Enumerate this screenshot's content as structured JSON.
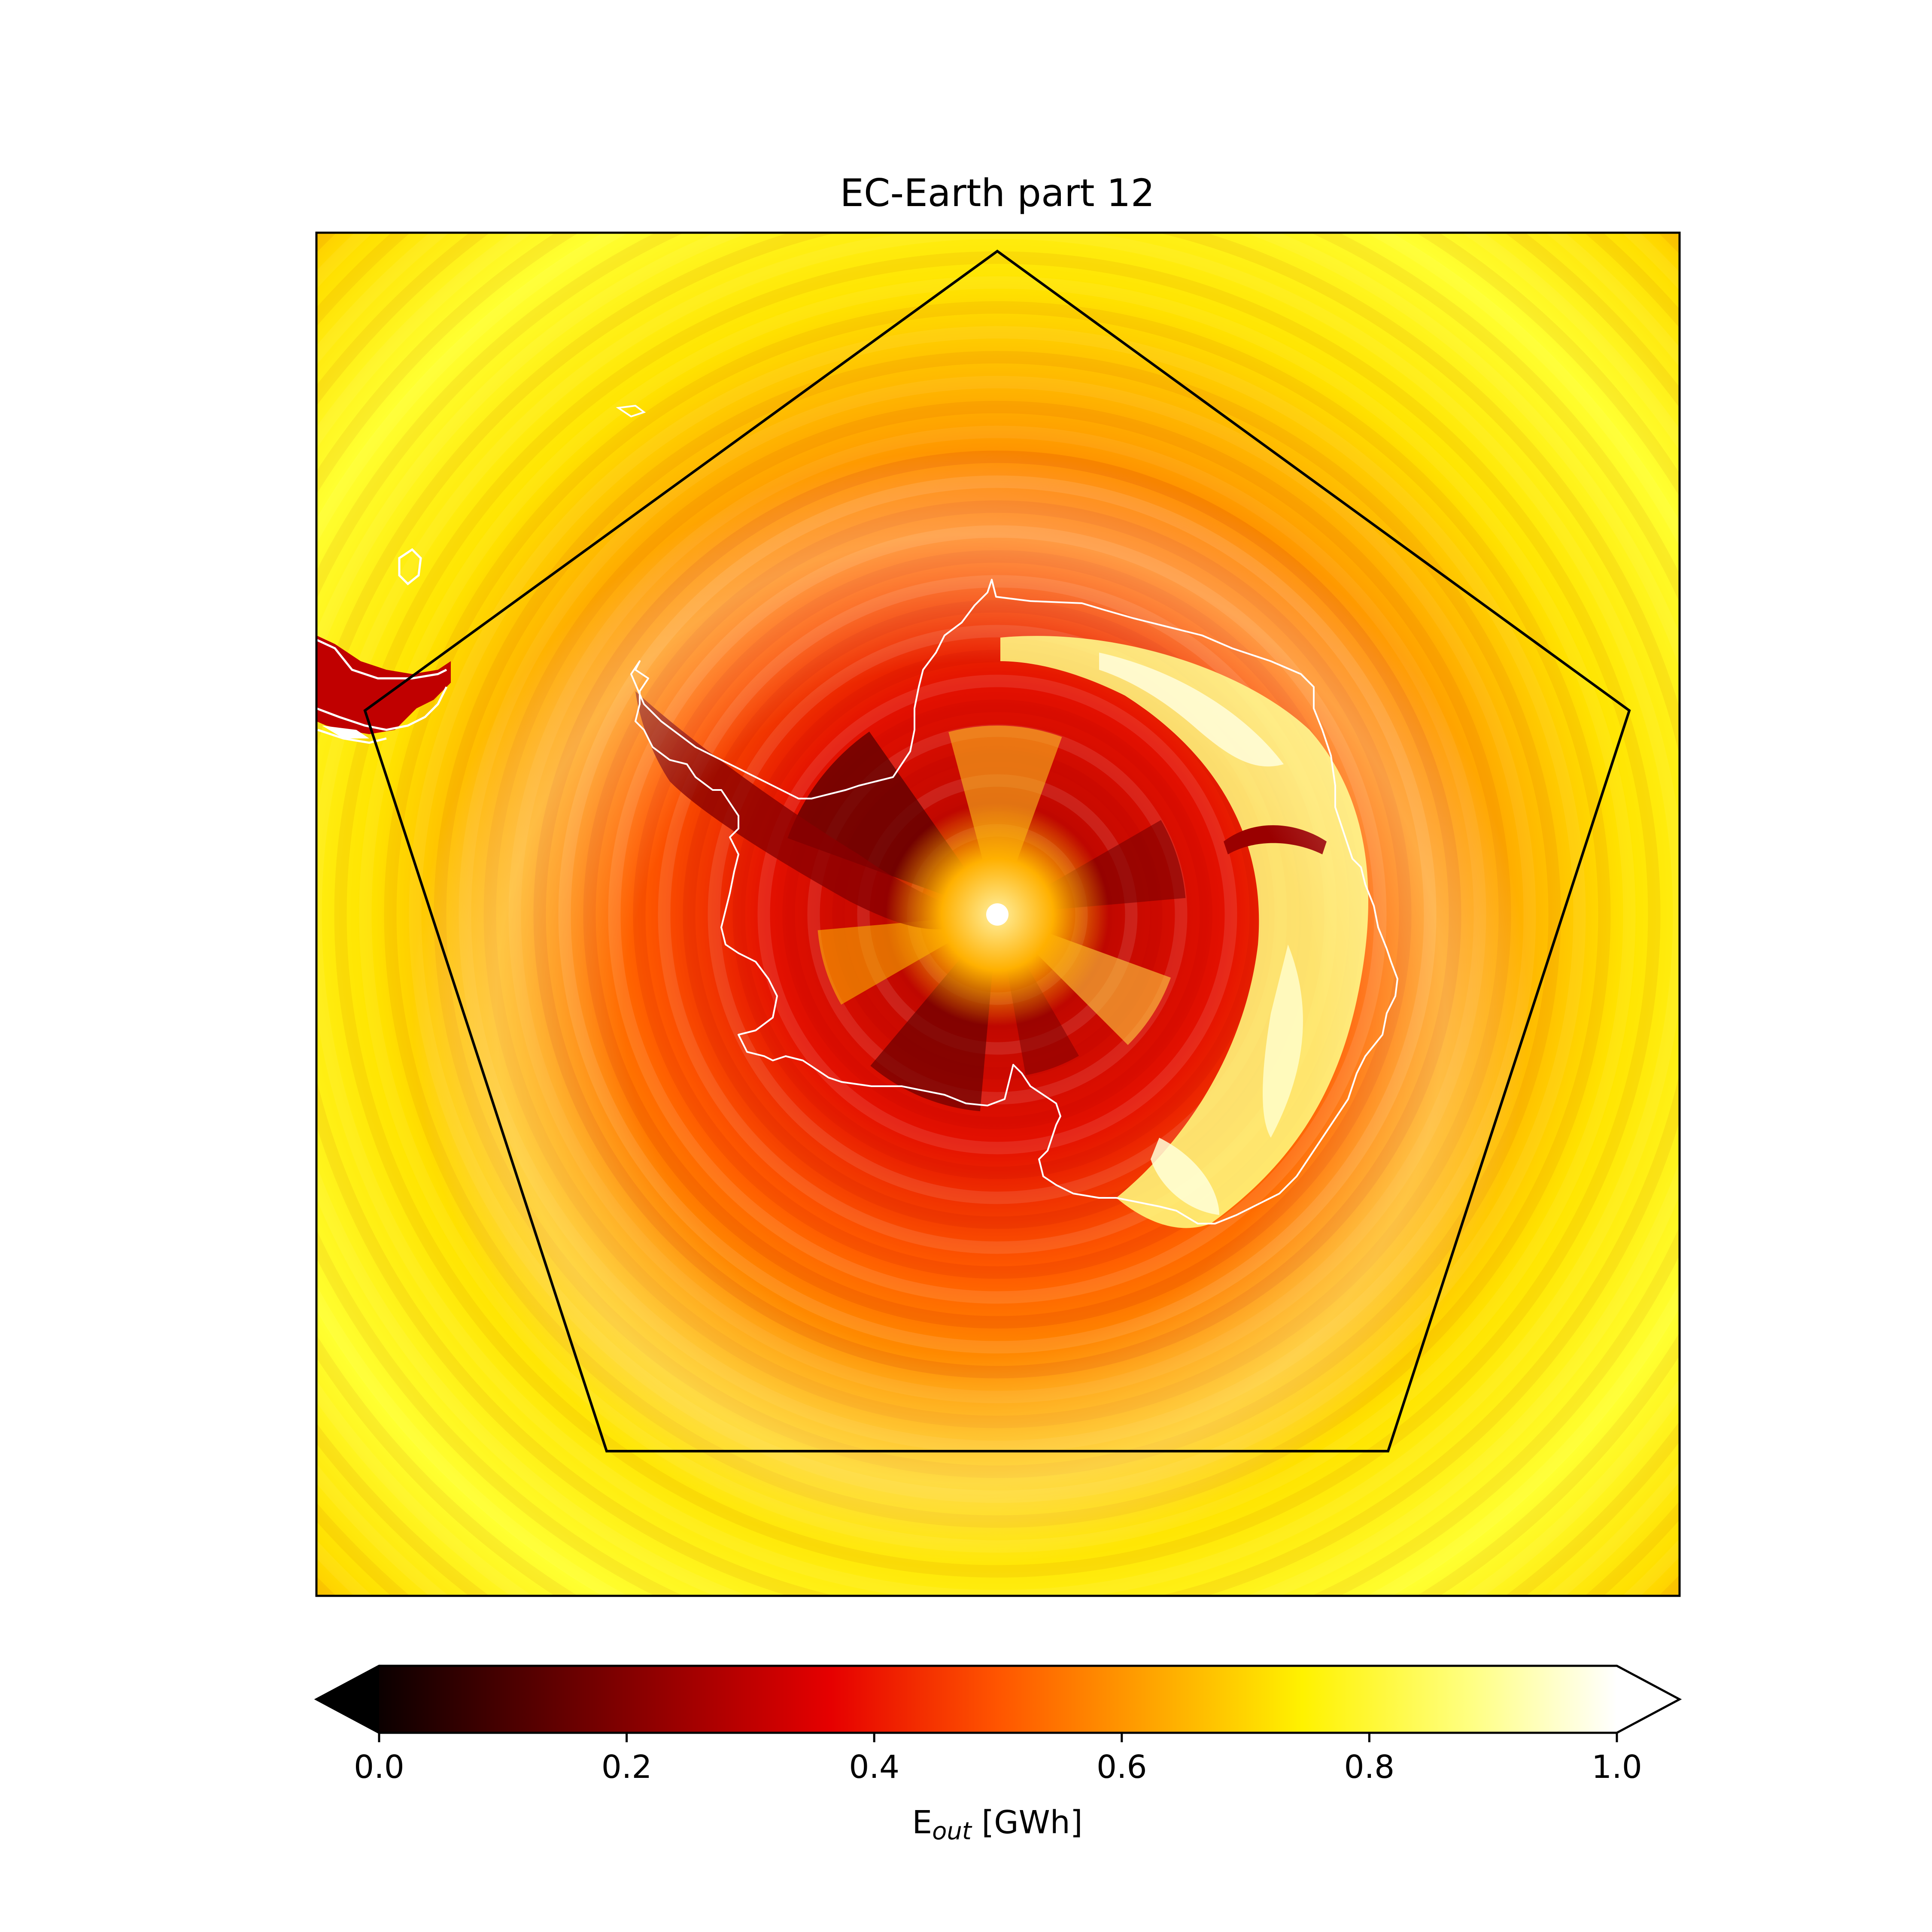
{
  "title": "EC-Earth part 12",
  "colorbar": {
    "label_main": "E",
    "label_sub": "out",
    "label_unit": " [GWh]",
    "ticks": [
      "0.0",
      "0.2",
      "0.4",
      "0.6",
      "0.8",
      "1.0"
    ],
    "tick_values": [
      0.0,
      0.2,
      0.4,
      0.6,
      0.8,
      1.0
    ],
    "range": [
      0.0,
      1.0
    ],
    "extend": "both",
    "colormap": "hot",
    "colormap_stops": [
      "#000000",
      "#e60000",
      "#ffd200",
      "#ffffff"
    ]
  },
  "map": {
    "projection": "south-polar-stereographic",
    "background_color": "#ffff20",
    "coastline_color": "#ffffff",
    "region_outline": "pentagon",
    "region_outline_color": "#000000"
  }
}
